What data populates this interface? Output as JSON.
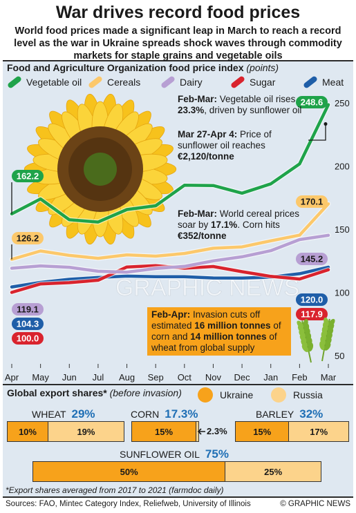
{
  "header": {
    "title": "War drives record food prices",
    "subtitle": "World food prices made a significant leap in March to reach a record level as the war in Ukraine spreads shock waves through commodity markets for staple grains and vegetable oils"
  },
  "chart_title": "Food and Agriculture Organization food price index",
  "chart_unit": "(points)",
  "legend": [
    {
      "label": "Vegetable oil",
      "color": "#1fa34a"
    },
    {
      "label": "Cereals",
      "color": "#fcc86b"
    },
    {
      "label": "Dairy",
      "color": "#b79fd3"
    },
    {
      "label": "Sugar",
      "color": "#d9232d"
    },
    {
      "label": "Meat",
      "color": "#1f5ea8"
    }
  ],
  "chart_data": {
    "type": "line",
    "title": "Food and Agriculture Organization food price index",
    "ylabel": "(points)",
    "x": [
      "Apr",
      "May",
      "Jun",
      "Jul",
      "Aug",
      "Sep",
      "Oct",
      "Nov",
      "Dec",
      "Jan",
      "Feb",
      "Mar"
    ],
    "y_ticks": [
      50,
      100,
      150,
      200,
      250
    ],
    "ylim": [
      50,
      250
    ],
    "series": [
      {
        "name": "Vegetable oil",
        "color": "#1fa34a",
        "values": [
          162.2,
          174.0,
          157.5,
          155.7,
          165.6,
          168.6,
          184.8,
          184.6,
          178.5,
          185.9,
          201.7,
          248.6
        ]
      },
      {
        "name": "Cereals",
        "color": "#fcc86b",
        "values": [
          126.2,
          132.8,
          129.3,
          127.0,
          129.7,
          128.7,
          130.8,
          135.0,
          136.0,
          140.8,
          145.3,
          170.1
        ]
      },
      {
        "name": "Dairy",
        "color": "#b79fd3",
        "values": [
          119.1,
          121.0,
          119.9,
          116.7,
          116.0,
          118.9,
          120.6,
          125.0,
          128.2,
          133.0,
          141.8,
          145.2
        ]
      },
      {
        "name": "Sugar",
        "color": "#d9232d",
        "values": [
          100.0,
          106.7,
          107.7,
          109.6,
          120.1,
          121.2,
          119.1,
          120.5,
          116.4,
          112.7,
          110.6,
          117.9
        ]
      },
      {
        "name": "Meat",
        "color": "#1f5ea8",
        "values": [
          104.3,
          107.9,
          110.4,
          111.8,
          112.9,
          112.4,
          112.4,
          111.4,
          111.3,
          112.1,
          114.8,
          120.0
        ]
      }
    ],
    "start_labels": [
      {
        "series": "Vegetable oil",
        "text": "162.2"
      },
      {
        "series": "Cereals",
        "text": "126.2"
      },
      {
        "series": "Dairy",
        "text": "119.1"
      },
      {
        "series": "Meat",
        "text": "104.3"
      },
      {
        "series": "Sugar",
        "text": "100.0"
      }
    ],
    "end_labels": [
      {
        "series": "Vegetable oil",
        "text": "248.6"
      },
      {
        "series": "Cereals",
        "text": "170.1"
      },
      {
        "series": "Dairy",
        "text": "145.2"
      },
      {
        "series": "Meat",
        "text": "120.0"
      },
      {
        "series": "Sugar",
        "text": "117.9"
      }
    ]
  },
  "annotations": {
    "feb_mar_oil_lead": "Feb-Mar:",
    "feb_mar_oil_pre": " Vegetable oil rises ",
    "feb_mar_oil_bold": "23.3%",
    "feb_mar_oil_post": ", driven by sunflower oil",
    "sunflower_lead": "Mar 27-Apr 4:",
    "sunflower_text": " Price of sunflower oil reaches ",
    "sunflower_bold": "€2,120/tonne",
    "cereal_lead": "Feb-Mar:",
    "cereal_pre": " World cereal prices soar by ",
    "cereal_bold": "17.1%",
    "cereal_mid": ". Corn hits ",
    "cereal_bold2": "€352/tonne",
    "box_lead": "Feb-Apr:",
    "box_pre": " Invasion cuts off estimated ",
    "box_bold1": "16 million tonnes",
    "box_mid": " of corn and ",
    "box_bold2": "14 million tonnes",
    "box_post": " of wheat from global supply"
  },
  "exports": {
    "title": "Global export shares*",
    "title_note": "(before invasion)",
    "legend_ukraine": "Ukraine",
    "legend_russia": "Russia",
    "color_ukraine": "#f7a21b",
    "color_russia": "#fcd38b",
    "wheat": {
      "name": "WHEAT",
      "total": "29%",
      "ukraine": "10%",
      "russia": "19%",
      "ukraine_value": 10,
      "russia_value": 19
    },
    "corn": {
      "name": "CORN",
      "total": "17.3%",
      "ukraine": "15%",
      "russia": "2.3%",
      "ukraine_value": 15,
      "russia_value": 2.3
    },
    "barley": {
      "name": "BARLEY",
      "total": "32%",
      "ukraine": "15%",
      "russia": "17%",
      "ukraine_value": 15,
      "russia_value": 17
    },
    "sunflower_oil": {
      "name": "SUNFLOWER OIL",
      "total": "75%",
      "ukraine": "50%",
      "russia": "25%",
      "ukraine_value": 50,
      "russia_value": 25
    }
  },
  "footnote": "*Export shares averaged from 2017 to 2021 (farmdoc daily)",
  "sources": "Sources: FAO, Mintec Category Index, Reliefweb, University of Illinois",
  "credit": "© GRAPHIC NEWS",
  "watermark": "GRAPHIC NEWS"
}
